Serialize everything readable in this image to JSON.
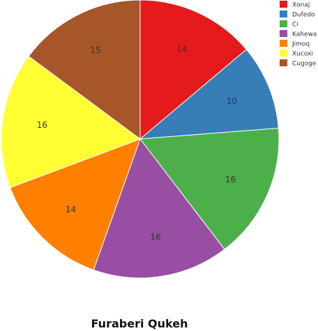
{
  "chart_data": {
    "type": "pie",
    "title": "Furaberi Qukeh",
    "categories": [
      "Xonaj",
      "Dufedo",
      "Ci",
      "Kahewa",
      "Jimoq",
      "Xucoxi",
      "Cugoge"
    ],
    "values": [
      14,
      10,
      16,
      16,
      14,
      16,
      15
    ],
    "colors": [
      "#e41a1c",
      "#377eb8",
      "#4daf4a",
      "#984ea3",
      "#ff7f00",
      "#ffff33",
      "#a65628"
    ],
    "data_labels": [
      "14",
      "10",
      "16",
      "16",
      "14",
      "16",
      "15"
    ],
    "legend": "top-right",
    "start_angle": "12 o'clock",
    "direction": "clockwise"
  }
}
